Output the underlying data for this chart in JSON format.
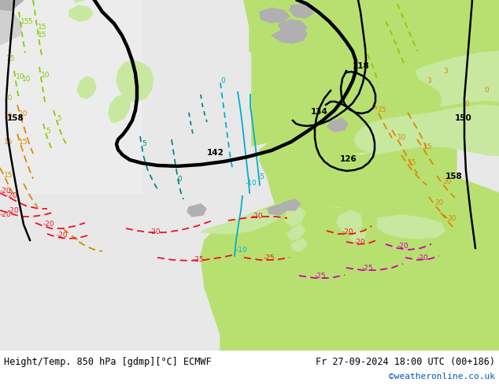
{
  "title_left": "Height/Temp. 850 hPa [gdmp][°C] ECMWF",
  "title_right": "Fr 27-09-2024 18:00 UTC (00+186)",
  "copyright": "©weatheronline.co.uk",
  "fig_width": 6.34,
  "fig_height": 4.9,
  "dpi": 100,
  "ocean_color": "#e8e8e8",
  "land_color_light": "#c8e8a0",
  "land_color_bright": "#b8e070",
  "land_color_gray": "#b0b0b0",
  "bottom_bg": "#ffffff",
  "black_lw": 1.8,
  "thick_lw": 3.2,
  "temp_lw": 1.3
}
